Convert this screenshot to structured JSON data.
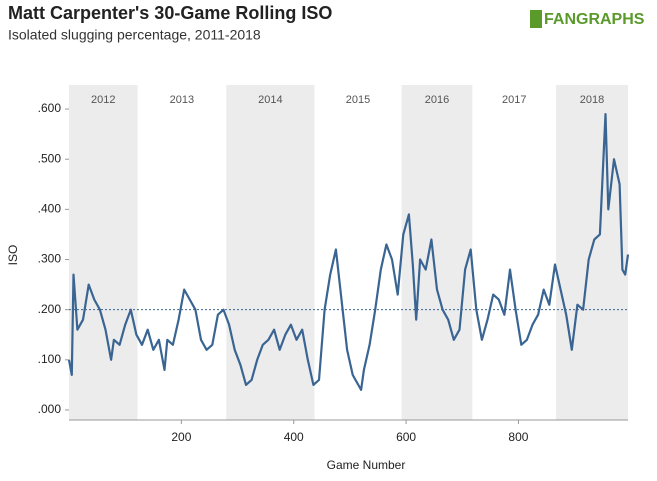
{
  "chart_data": {
    "type": "line",
    "title": "Matt Carpenter's 30-Game Rolling ISO",
    "subtitle": "Isolated slugging percentage, 2011-2018",
    "logo": "FANGRAPHS",
    "x_label": "Game Number",
    "y_label": "ISO",
    "color": "#3a6593",
    "band_color": "#ececec",
    "reference_line": 0.2,
    "reference_color": "#3a6593",
    "seasons": [
      {
        "label": "2012",
        "start": 0,
        "end": 122,
        "shaded": true
      },
      {
        "label": "2013",
        "start": 122,
        "end": 280,
        "shaded": false
      },
      {
        "label": "2014",
        "start": 280,
        "end": 437,
        "shaded": true
      },
      {
        "label": "2015",
        "start": 437,
        "end": 592,
        "shaded": false
      },
      {
        "label": "2016",
        "start": 592,
        "end": 718,
        "shaded": true
      },
      {
        "label": "2017",
        "start": 718,
        "end": 867,
        "shaded": false
      },
      {
        "label": "2018",
        "start": 867,
        "end": 995,
        "shaded": true
      }
    ],
    "x": [
      0,
      5,
      8,
      15,
      25,
      35,
      45,
      55,
      65,
      75,
      80,
      90,
      100,
      110,
      120,
      130,
      140,
      150,
      160,
      170,
      175,
      185,
      195,
      205,
      215,
      225,
      235,
      245,
      255,
      265,
      275,
      285,
      295,
      305,
      315,
      325,
      335,
      345,
      355,
      365,
      375,
      385,
      395,
      405,
      415,
      425,
      435,
      445,
      455,
      465,
      475,
      485,
      495,
      505,
      515,
      520,
      525,
      535,
      545,
      555,
      565,
      575,
      585,
      595,
      605,
      612,
      618,
      625,
      635,
      645,
      655,
      665,
      675,
      685,
      695,
      705,
      715,
      725,
      735,
      745,
      755,
      765,
      775,
      785,
      795,
      805,
      815,
      825,
      835,
      845,
      855,
      865,
      875,
      885,
      895,
      905,
      915,
      925,
      935,
      945,
      950,
      955,
      960,
      970,
      980,
      985,
      990,
      995
    ],
    "values": [
      0.1,
      0.07,
      0.27,
      0.16,
      0.18,
      0.25,
      0.22,
      0.2,
      0.16,
      0.1,
      0.14,
      0.13,
      0.17,
      0.2,
      0.15,
      0.13,
      0.16,
      0.12,
      0.14,
      0.08,
      0.14,
      0.13,
      0.18,
      0.24,
      0.22,
      0.2,
      0.14,
      0.12,
      0.13,
      0.19,
      0.2,
      0.17,
      0.12,
      0.09,
      0.05,
      0.06,
      0.1,
      0.13,
      0.14,
      0.16,
      0.12,
      0.15,
      0.17,
      0.14,
      0.16,
      0.1,
      0.05,
      0.06,
      0.2,
      0.27,
      0.32,
      0.22,
      0.12,
      0.07,
      0.05,
      0.04,
      0.08,
      0.13,
      0.2,
      0.28,
      0.33,
      0.3,
      0.23,
      0.35,
      0.39,
      0.29,
      0.18,
      0.3,
      0.28,
      0.34,
      0.24,
      0.2,
      0.18,
      0.14,
      0.16,
      0.28,
      0.32,
      0.2,
      0.14,
      0.18,
      0.23,
      0.22,
      0.19,
      0.28,
      0.2,
      0.13,
      0.14,
      0.17,
      0.19,
      0.24,
      0.21,
      0.29,
      0.24,
      0.19,
      0.12,
      0.21,
      0.2,
      0.3,
      0.34,
      0.35,
      0.47,
      0.59,
      0.4,
      0.5,
      0.45,
      0.28,
      0.27,
      0.31
    ],
    "xlim": [
      0,
      995
    ],
    "ylim": [
      -0.02,
      0.648
    ],
    "xticks": [
      200,
      400,
      600,
      800
    ],
    "yticks": [
      {
        "value": 0,
        "label": ".000"
      },
      {
        "value": 0.1,
        "label": ".100"
      },
      {
        "value": 0.2,
        "label": ".200"
      },
      {
        "value": 0.3,
        "label": ".300"
      },
      {
        "value": 0.4,
        "label": ".400"
      },
      {
        "value": 0.5,
        "label": ".500"
      },
      {
        "value": 0.6,
        "label": ".600"
      }
    ]
  }
}
